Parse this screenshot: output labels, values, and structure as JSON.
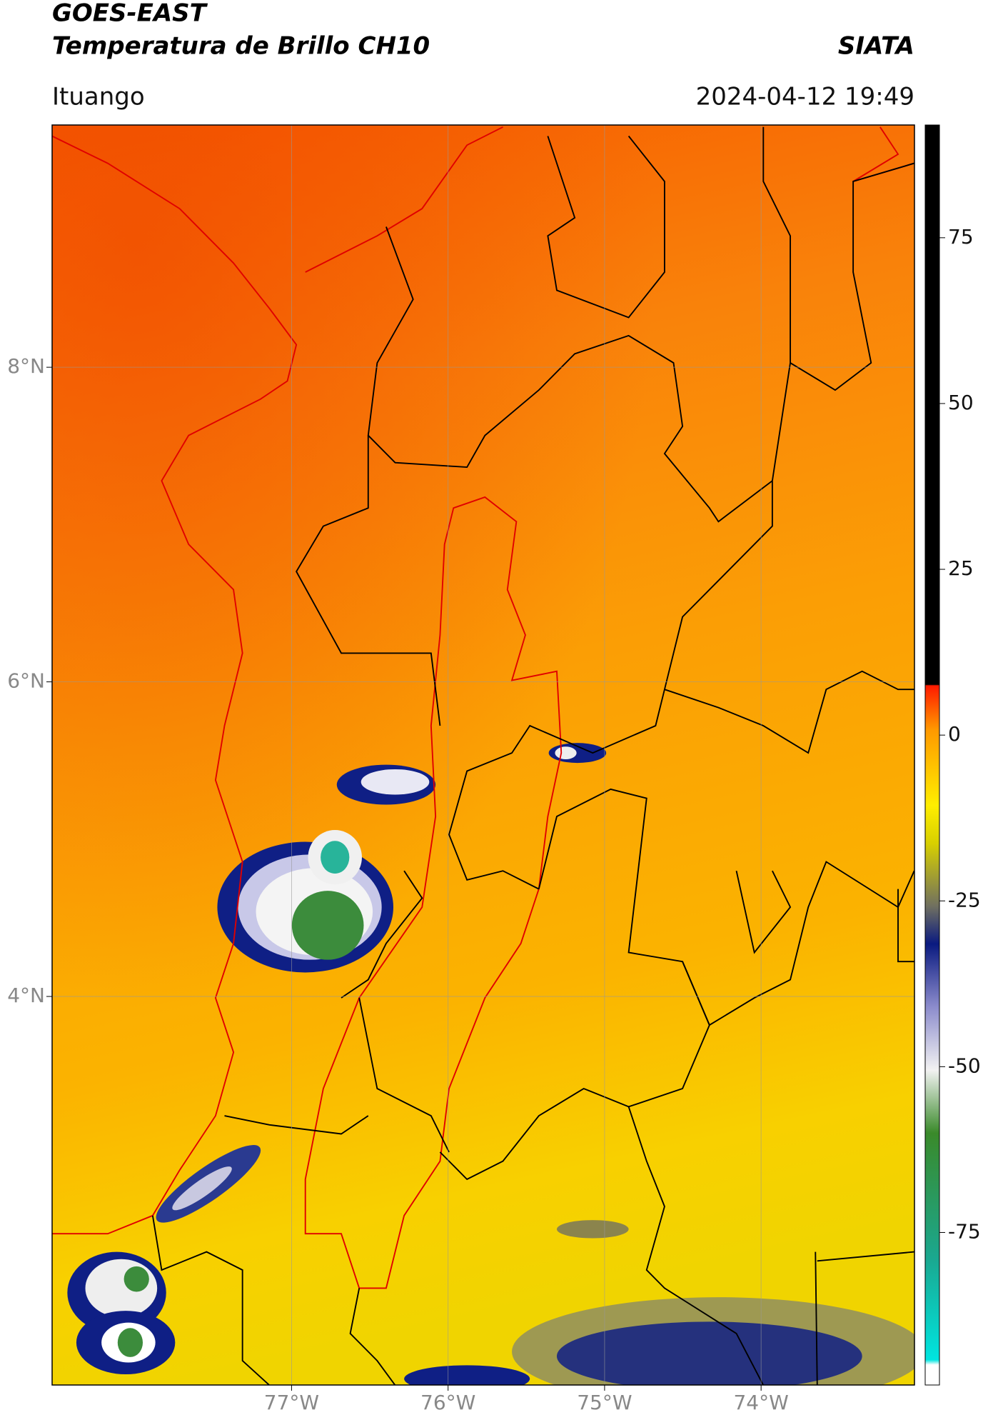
{
  "header": {
    "title": "GOES-EAST",
    "subtitle": "Temperatura de Brillo CH10",
    "source": "SIATA",
    "location": "Ituango",
    "datetime": "2024-04-12 19:49"
  },
  "map": {
    "xlim": [
      -78.53,
      -73.02
    ],
    "ylim": [
      1.53,
      9.54
    ],
    "xticks": [
      {
        "value": -77,
        "label": "77°W"
      },
      {
        "value": -76,
        "label": "76°W"
      },
      {
        "value": -75,
        "label": "75°W"
      },
      {
        "value": -74,
        "label": "74°W"
      }
    ],
    "yticks": [
      {
        "value": 4,
        "label": "4°N"
      },
      {
        "value": 6,
        "label": "6°N"
      },
      {
        "value": 8,
        "label": "8°N"
      }
    ],
    "grid": true
  },
  "colorbar": {
    "lim": [
      -98,
      92
    ],
    "ticks": [
      -75,
      -50,
      -25,
      0,
      25,
      50,
      75
    ]
  }
}
